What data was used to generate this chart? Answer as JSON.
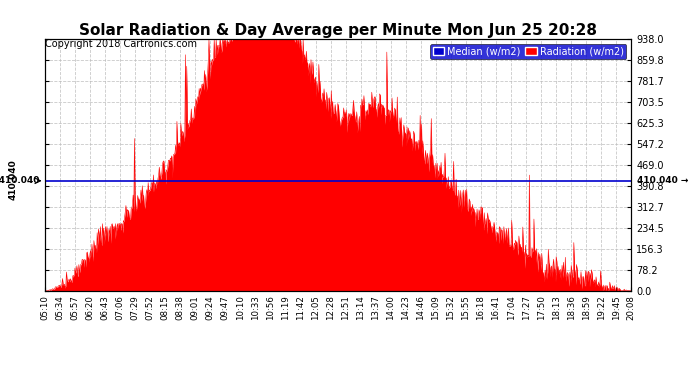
{
  "title": "Solar Radiation & Day Average per Minute Mon Jun 25 20:28",
  "copyright": "Copyright 2018 Cartronics.com",
  "ylabel_right_values": [
    0.0,
    78.2,
    156.3,
    234.5,
    312.7,
    390.8,
    469.0,
    547.2,
    625.3,
    703.5,
    781.7,
    859.8,
    938.0
  ],
  "ymin": 0,
  "ymax": 938.0,
  "median_line": 410.04,
  "x_labels": [
    "05:10",
    "05:34",
    "05:57",
    "06:20",
    "06:43",
    "07:06",
    "07:29",
    "07:52",
    "08:15",
    "08:38",
    "09:01",
    "09:24",
    "09:47",
    "10:10",
    "10:33",
    "10:56",
    "11:19",
    "11:42",
    "12:05",
    "12:28",
    "12:51",
    "13:14",
    "13:37",
    "14:00",
    "14:23",
    "14:46",
    "15:09",
    "15:32",
    "15:55",
    "16:18",
    "16:41",
    "17:04",
    "17:27",
    "17:50",
    "18:13",
    "18:36",
    "18:59",
    "19:22",
    "19:45",
    "20:08"
  ],
  "radiation_color": "#FF0000",
  "median_color": "#0000CD",
  "background_color": "#FFFFFF",
  "grid_color": "#BBBBBB",
  "title_fontsize": 11,
  "copyright_fontsize": 7,
  "legend_blue_label": "Median (w/m2)",
  "legend_red_label": "Radiation (w/m2)",
  "median_label": "410.040"
}
